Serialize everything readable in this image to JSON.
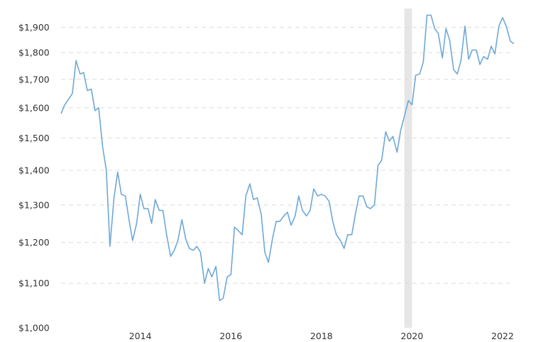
{
  "chart_data": {
    "type": "line",
    "title": "",
    "xlabel": "",
    "ylabel": "",
    "y_scale": "log",
    "ylim": [
      1000,
      1960
    ],
    "xlim": [
      2012.25,
      2022.25
    ],
    "y_ticks": [
      1000,
      1100,
      1200,
      1300,
      1400,
      1500,
      1600,
      1700,
      1800,
      1900
    ],
    "y_tick_labels": [
      "$1,000",
      "$1,100",
      "$1,200",
      "$1,300",
      "$1,400",
      "$1,500",
      "$1,600",
      "$1,700",
      "$1,800",
      "$1,900"
    ],
    "x_ticks": [
      2014,
      2016,
      2018,
      2020,
      2022
    ],
    "x_tick_labels": [
      "2014",
      "2016",
      "2018",
      "2020",
      "2022"
    ],
    "grid": true,
    "legend": "none",
    "shaded_regions": [
      {
        "x_start": 2019.83,
        "x_end": 2020.0
      }
    ],
    "colors": {
      "line": "#6fa8d6",
      "shade": "#e6e6e6",
      "grid": "#dcdcdc"
    },
    "series": [
      {
        "x": [
          2012.25,
          2012.33,
          2012.42,
          2012.5,
          2012.58,
          2012.67,
          2012.75,
          2012.83,
          2012.92,
          2013.0,
          2013.08,
          2013.17,
          2013.25,
          2013.33,
          2013.42,
          2013.5,
          2013.58,
          2013.67,
          2013.75,
          2013.83,
          2013.92,
          2014.0,
          2014.08,
          2014.17,
          2014.25,
          2014.33,
          2014.42,
          2014.5,
          2014.58,
          2014.67,
          2014.75,
          2014.83,
          2014.92,
          2015.0,
          2015.08,
          2015.17,
          2015.25,
          2015.33,
          2015.42,
          2015.5,
          2015.58,
          2015.67,
          2015.75,
          2015.83,
          2015.92,
          2016.0,
          2016.08,
          2016.17,
          2016.25,
          2016.33,
          2016.42,
          2016.5,
          2016.58,
          2016.67,
          2016.75,
          2016.83,
          2016.92,
          2017.0,
          2017.08,
          2017.17,
          2017.25,
          2017.33,
          2017.42,
          2017.5,
          2017.58,
          2017.67,
          2017.75,
          2017.83,
          2017.92,
          2018.0,
          2018.08,
          2018.17,
          2018.25,
          2018.33,
          2018.42,
          2018.5,
          2018.58,
          2018.67,
          2018.75,
          2018.83,
          2018.92,
          2019.0,
          2019.08,
          2019.17,
          2019.25,
          2019.33,
          2019.42,
          2019.5,
          2019.58,
          2019.67,
          2019.75,
          2019.83,
          2019.92,
          2020.0,
          2020.08,
          2020.17,
          2020.25,
          2020.33,
          2020.42,
          2020.5,
          2020.58,
          2020.67,
          2020.75,
          2020.83,
          2020.92,
          2021.0,
          2021.08,
          2021.17,
          2021.25,
          2021.33,
          2021.42,
          2021.5,
          2021.58,
          2021.67,
          2021.75,
          2021.83,
          2021.92,
          2022.0,
          2022.08,
          2022.17,
          2022.25
        ],
        "values": [
          1580,
          1610,
          1630,
          1650,
          1770,
          1720,
          1725,
          1660,
          1665,
          1590,
          1600,
          1470,
          1400,
          1190,
          1320,
          1395,
          1330,
          1325,
          1260,
          1205,
          1250,
          1330,
          1290,
          1290,
          1250,
          1315,
          1285,
          1285,
          1220,
          1165,
          1180,
          1205,
          1260,
          1210,
          1185,
          1180,
          1190,
          1175,
          1100,
          1135,
          1115,
          1140,
          1060,
          1065,
          1115,
          1120,
          1240,
          1230,
          1220,
          1325,
          1360,
          1315,
          1320,
          1275,
          1175,
          1150,
          1210,
          1255,
          1255,
          1270,
          1280,
          1245,
          1270,
          1325,
          1285,
          1270,
          1285,
          1345,
          1325,
          1330,
          1325,
          1310,
          1255,
          1220,
          1205,
          1185,
          1220,
          1220,
          1275,
          1325,
          1325,
          1295,
          1290,
          1300,
          1415,
          1430,
          1520,
          1490,
          1505,
          1455,
          1525,
          1570,
          1625,
          1610,
          1715,
          1720,
          1765,
          1950,
          1950,
          1895,
          1875,
          1780,
          1895,
          1850,
          1735,
          1720,
          1770,
          1905,
          1775,
          1810,
          1810,
          1755,
          1785,
          1775,
          1825,
          1795,
          1905,
          1940,
          1905,
          1845,
          1835
        ]
      }
    ]
  }
}
